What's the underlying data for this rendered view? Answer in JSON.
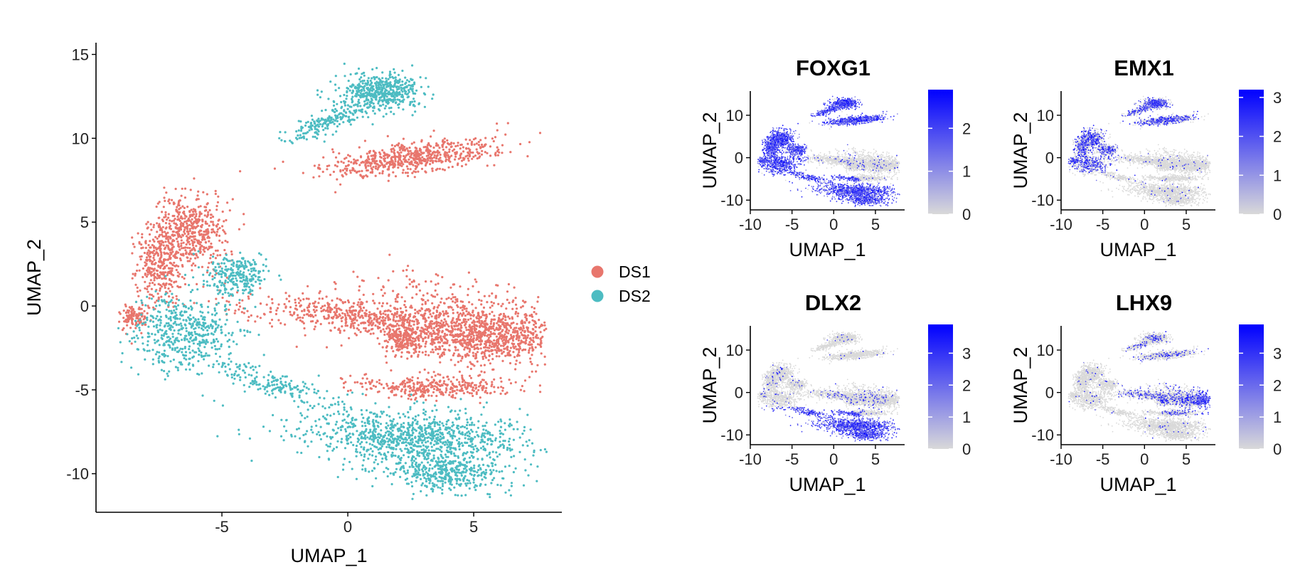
{
  "chart_data": [
    {
      "type": "scatter",
      "panel": "umap-by-dataset",
      "title": "",
      "xlabel": "UMAP_1",
      "ylabel": "UMAP_2",
      "xlim": [
        -10,
        8.5
      ],
      "ylim": [
        -12.3,
        15.7
      ],
      "xticks": [
        -5,
        0,
        5
      ],
      "yticks": [
        -10,
        -5,
        0,
        5,
        10,
        15
      ],
      "grid": false,
      "legend_position": "right",
      "series": [
        {
          "name": "DS1",
          "color": "#E8766D",
          "clusters": [
            {
              "cx": 2.5,
              "cy": 8.8,
              "sx": 1.7,
              "sy": 0.45,
              "n": 650,
              "angle": 12
            },
            {
              "cx": -6.3,
              "cy": 4.5,
              "sx": 0.7,
              "sy": 1.1,
              "n": 550,
              "angle": 0
            },
            {
              "cx": -7.5,
              "cy": 2.3,
              "sx": 0.45,
              "sy": 1.1,
              "n": 300,
              "angle": 0
            },
            {
              "cx": -8.5,
              "cy": -0.6,
              "sx": 0.3,
              "sy": 0.4,
              "n": 120,
              "angle": 0
            },
            {
              "cx": 0.3,
              "cy": -0.6,
              "sx": 2.3,
              "sy": 0.5,
              "n": 500,
              "angle": -8
            },
            {
              "cx": 2.2,
              "cy": -2.0,
              "sx": 0.4,
              "sy": 0.4,
              "n": 180,
              "angle": 0
            },
            {
              "cx": 5.5,
              "cy": -1.8,
              "sx": 1.5,
              "sy": 0.8,
              "n": 900,
              "angle": 0
            },
            {
              "cx": 3.5,
              "cy": -4.8,
              "sx": 1.6,
              "sy": 0.35,
              "n": 350,
              "angle": 0
            },
            {
              "cx": 3.5,
              "cy": -0.5,
              "sx": 2.0,
              "sy": 1.2,
              "n": 400,
              "angle": 0
            }
          ]
        },
        {
          "name": "DS2",
          "color": "#4DBCC2",
          "clusters": [
            {
              "cx": 1.3,
              "cy": 12.8,
              "sx": 0.8,
              "sy": 0.55,
              "n": 500,
              "angle": 0
            },
            {
              "cx": -0.8,
              "cy": 11.0,
              "sx": 1.0,
              "sy": 0.3,
              "n": 200,
              "angle": 35
            },
            {
              "cx": -4.5,
              "cy": 1.8,
              "sx": 0.6,
              "sy": 0.6,
              "n": 250,
              "angle": 0
            },
            {
              "cx": -6.5,
              "cy": -1.5,
              "sx": 1.1,
              "sy": 1.2,
              "n": 500,
              "angle": 0
            },
            {
              "cx": -3.0,
              "cy": -4.6,
              "sx": 1.6,
              "sy": 0.35,
              "n": 200,
              "angle": -28
            },
            {
              "cx": 2.5,
              "cy": -7.8,
              "sx": 2.3,
              "sy": 0.8,
              "n": 1000,
              "angle": -6
            },
            {
              "cx": 3.8,
              "cy": -10.0,
              "sx": 1.2,
              "sy": 0.55,
              "n": 400,
              "angle": -10
            }
          ]
        }
      ]
    },
    {
      "type": "scatter",
      "panel": "feature-FOXG1",
      "title": "FOXG1",
      "xlabel": "UMAP_1",
      "ylabel": "UMAP_2",
      "xlim": [
        -10,
        8.5
      ],
      "ylim": [
        -12.3,
        15.7
      ],
      "xticks": [
        -10,
        -5,
        0,
        5
      ],
      "yticks": [
        -10,
        0,
        10
      ],
      "color_low": "#D9D9D9",
      "color_high": "#0000FF",
      "colorbar_max": 2.9,
      "colorbar_ticks": [
        0,
        1,
        2
      ],
      "expression_by_region": {
        "upper-islands": 0.9,
        "left-group": 0.9,
        "center-right": 0.05,
        "lower-arm": 0.85
      }
    },
    {
      "type": "scatter",
      "panel": "feature-EMX1",
      "title": "EMX1",
      "xlabel": "UMAP_1",
      "ylabel": "UMAP_2",
      "xlim": [
        -10,
        8.5
      ],
      "ylim": [
        -12.3,
        15.7
      ],
      "xticks": [
        -10,
        -5,
        0,
        5
      ],
      "yticks": [
        -10,
        0,
        10
      ],
      "color_low": "#D9D9D9",
      "color_high": "#0000FF",
      "colorbar_max": 3.2,
      "colorbar_ticks": [
        0,
        1,
        2,
        3
      ],
      "expression_by_region": {
        "upper-islands": 0.5,
        "left-group": 0.45,
        "center-right": 0.02,
        "lower-arm": 0.02
      }
    },
    {
      "type": "scatter",
      "panel": "feature-DLX2",
      "title": "DLX2",
      "xlabel": "UMAP_1",
      "ylabel": "UMAP_2",
      "xlim": [
        -10,
        8.5
      ],
      "ylim": [
        -12.3,
        15.7
      ],
      "xticks": [
        -10,
        -5,
        0,
        5
      ],
      "yticks": [
        -10,
        0,
        10
      ],
      "color_low": "#D9D9D9",
      "color_high": "#0000FF",
      "colorbar_max": 3.9,
      "colorbar_ticks": [
        0,
        1,
        2,
        3
      ],
      "expression_by_region": {
        "upper-islands": 0.02,
        "left-group": 0.05,
        "center-right": 0.08,
        "lower-arm": 0.9
      }
    },
    {
      "type": "scatter",
      "panel": "feature-LHX9",
      "title": "LHX9",
      "xlabel": "UMAP_1",
      "ylabel": "UMAP_2",
      "xlim": [
        -10,
        8.5
      ],
      "ylim": [
        -12.3,
        15.7
      ],
      "xticks": [
        -10,
        -5,
        0,
        5
      ],
      "yticks": [
        -10,
        0,
        10
      ],
      "color_low": "#D9D9D9",
      "color_high": "#0000FF",
      "colorbar_max": 3.9,
      "colorbar_ticks": [
        0,
        1,
        2,
        3
      ],
      "expression_by_region": {
        "upper-islands": 0.15,
        "left-group": 0.02,
        "center-right": 0.25,
        "lower-arm": 0.02,
        "far-right-tip": 0.9
      }
    }
  ]
}
